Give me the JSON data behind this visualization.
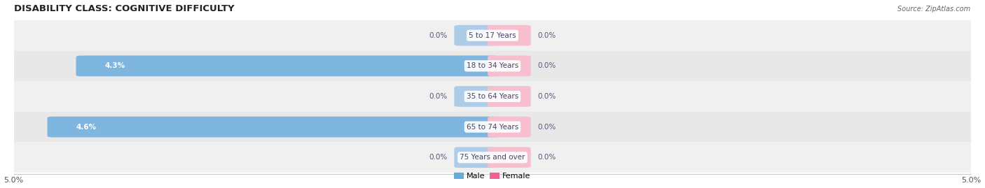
{
  "title": "DISABILITY CLASS: COGNITIVE DIFFICULTY",
  "source": "Source: ZipAtlas.com",
  "categories": [
    "5 to 17 Years",
    "18 to 34 Years",
    "35 to 64 Years",
    "65 to 74 Years",
    "75 Years and over"
  ],
  "male_values": [
    0.0,
    4.3,
    0.0,
    4.6,
    0.0
  ],
  "female_values": [
    0.0,
    0.0,
    0.0,
    0.0,
    0.0
  ],
  "x_max": 5.0,
  "male_color": "#7eb6e0",
  "female_color": "#f4a0b5",
  "male_stub_color": "#aecce8",
  "female_stub_color": "#f7bece",
  "row_colors": [
    "#f0f0f0",
    "#e8e8e8"
  ],
  "label_color": "#444466",
  "title_color": "#222222",
  "text_color_on_bar": "#ffffff",
  "text_color_off_bar": "#555577",
  "legend_male_color": "#6aaad8",
  "legend_female_color": "#f06090"
}
